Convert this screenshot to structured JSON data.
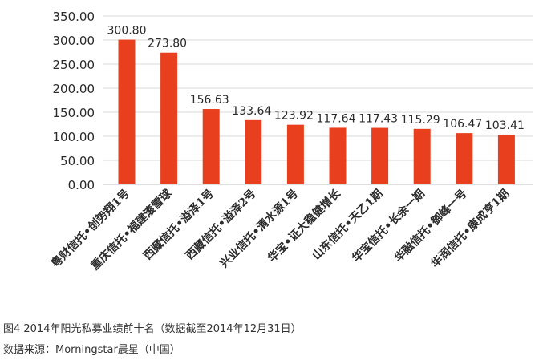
{
  "chart_data": {
    "type": "bar",
    "categories": [
      "粤财信托•创势翔1号",
      "重庆信托•福建滚雪球",
      "西藏信托•溢泽1号",
      "西藏信托•溢泽2号",
      "兴业信托•清水源1号",
      "华宝•证大稳健增长",
      "山东信托•天乙1期",
      "华宝信托•长余一期",
      "华融信托•御峰一号",
      "华润信托•康成亨1期"
    ],
    "values": [
      300.8,
      273.8,
      156.63,
      133.64,
      123.92,
      117.64,
      117.43,
      115.29,
      106.47,
      103.41
    ],
    "value_labels": [
      "300.80",
      "273.80",
      "156.63",
      "133.64",
      "123.92",
      "117.64",
      "117.43",
      "115.29",
      "106.47",
      "103.41"
    ],
    "yticks": [
      "0.00",
      "50.00",
      "100.00",
      "150.00",
      "200.00",
      "250.00",
      "300.00",
      "350.00"
    ],
    "ylim": [
      0,
      350
    ],
    "grid": true,
    "bar_color": "#e8401f",
    "grid_color": "#d9d9d9"
  },
  "caption": {
    "title": "图4 2014年阳光私募业绩前十名（数据截至2014年12月31日）",
    "source": "数据来源：Morningstar晨星（中国）"
  }
}
